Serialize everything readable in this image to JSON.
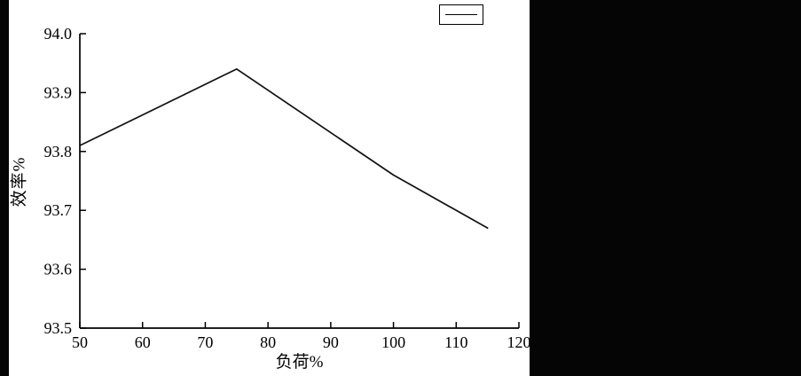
{
  "chart_data": {
    "type": "line",
    "title": "",
    "xlabel": "负荷%",
    "ylabel": "效率%",
    "x": [
      50,
      75,
      100,
      115
    ],
    "series": [
      {
        "name": "",
        "values": [
          93.81,
          93.94,
          93.76,
          93.67
        ]
      }
    ],
    "xlim": [
      50,
      120
    ],
    "ylim": [
      93.5,
      94.0
    ],
    "x_tick_labels": [
      "50",
      "60",
      "70",
      "80",
      "90",
      "100",
      "110",
      "120"
    ],
    "y_tick_labels": [
      "93.5",
      "93.6",
      "93.7",
      "93.8",
      "93.9",
      "94.0"
    ],
    "grid": false,
    "legend_position": "top-right",
    "legend_label": "",
    "colors": {
      "line": "#111111",
      "axis": "#000000",
      "plot_background": "#ffffff",
      "surround_background": "#050505",
      "text": "#000000"
    }
  }
}
